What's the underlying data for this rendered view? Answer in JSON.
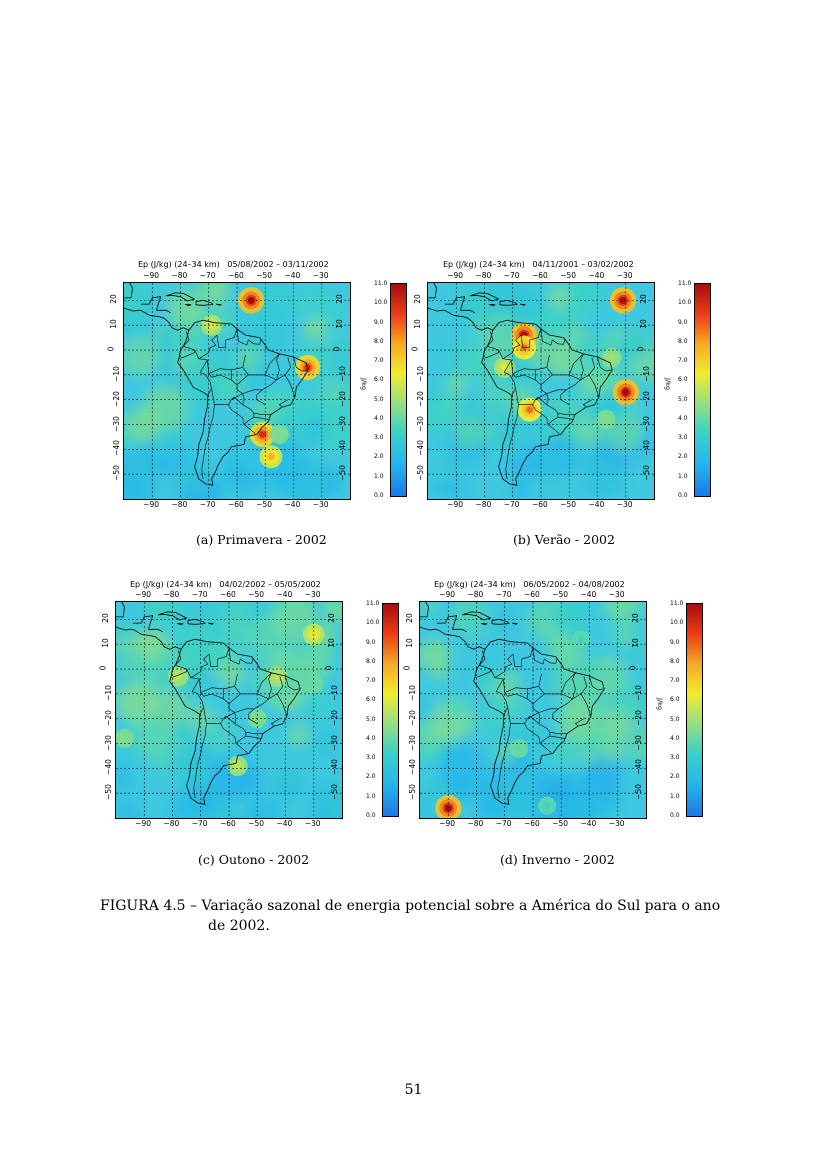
{
  "panels": [
    {
      "title": "Ep (J/kg) (24–34 km)   05/08/2002 – 03/11/2002",
      "caption": "(a) Primavera - 2002",
      "hotspots": [
        [
          -55,
          20,
          1.0
        ],
        [
          -35,
          -7,
          0.9
        ],
        [
          -51,
          -34,
          0.9
        ],
        [
          -48,
          -43,
          0.7
        ],
        [
          -69,
          10,
          0.55
        ],
        [
          -45,
          -34,
          0.4
        ]
      ],
      "top_ticks": [
        "−90",
        "−80",
        "−70",
        "−60",
        "−50",
        "−40",
        "−30"
      ],
      "bottom_ticks": [
        "−90",
        "−80",
        "−70",
        "−60",
        "−50",
        "−40",
        "−30"
      ]
    },
    {
      "title": "Ep (J/kg) (24–34 km)   04/11/2001 – 03/02/2002",
      "caption": "(b) Verão - 2002",
      "hotspots": [
        [
          -66,
          6,
          1.0
        ],
        [
          -66,
          1,
          0.8
        ],
        [
          -31,
          20,
          1.0
        ],
        [
          -30,
          -17,
          1.0
        ],
        [
          -64,
          -24,
          0.8
        ],
        [
          -73,
          -7,
          0.55
        ],
        [
          -35,
          -3,
          0.45
        ],
        [
          -37,
          -28,
          0.4
        ]
      ],
      "top_ticks": [
        "−90",
        "−80",
        "−70",
        "−60",
        "−50",
        "−40",
        "−30"
      ],
      "bottom_ticks": [
        "−90",
        "−80",
        "−70",
        "−60",
        "−50",
        "−40",
        "−30"
      ]
    },
    {
      "title": "Ep (J/kg) (24–34 km)   04/02/2002 – 05/05/2002",
      "caption": "(c) Outono - 2002",
      "hotspots": [
        [
          -30,
          14,
          0.6
        ],
        [
          -78,
          -3,
          0.5
        ],
        [
          -57,
          -39,
          0.5
        ],
        [
          -50,
          -20,
          0.4
        ],
        [
          -43,
          -3,
          0.5
        ],
        [
          -97,
          -28,
          0.4
        ],
        [
          -30,
          -6,
          0.35
        ]
      ],
      "top_ticks": [
        "−90",
        "−80",
        "−70",
        "−60",
        "−50",
        "−40",
        "−30"
      ],
      "bottom_ticks": [
        "−90",
        "−80",
        "−70",
        "−60",
        "−50",
        "−40",
        "−30"
      ]
    },
    {
      "title": "Ep (J/kg) (24–34 km)   06/05/2002 – 04/08/2002",
      "caption": "(d) Inverno - 2002",
      "hotspots": [
        [
          -90,
          -56,
          1.0
        ],
        [
          -65,
          -32,
          0.35
        ],
        [
          -43,
          12,
          0.3
        ],
        [
          -55,
          -55,
          0.3
        ]
      ],
      "top_ticks": [
        "−90",
        "−80",
        "−70",
        "−60",
        "−50",
        "−40",
        "−30"
      ],
      "bottom_ticks": [
        "−90",
        "−80",
        "−70",
        "−60",
        "−50",
        "−40",
        "−30"
      ]
    }
  ],
  "lat_ticks_left": [
    "20",
    "10",
    "0",
    "−10",
    "−20",
    "−30",
    "−40",
    "−50"
  ],
  "lat_ticks_right": [
    "20",
    "10",
    "0",
    "−10",
    "−20",
    "−30",
    "−40",
    "−50"
  ],
  "colorbar_labels": [
    "11.0",
    "10.0",
    "9.0",
    "8.0",
    "7.0",
    "6.0",
    "5.0",
    "4.0",
    "3.0",
    "2.0",
    "1.0",
    "0.0"
  ],
  "colorbar_unit": "J/kg",
  "figure_caption": {
    "line1": "FIGURA 4.5 – Variação sazonal de energia potencial sobre a América do Sul para o ano",
    "line2": "de 2002."
  },
  "page_number": "51"
}
